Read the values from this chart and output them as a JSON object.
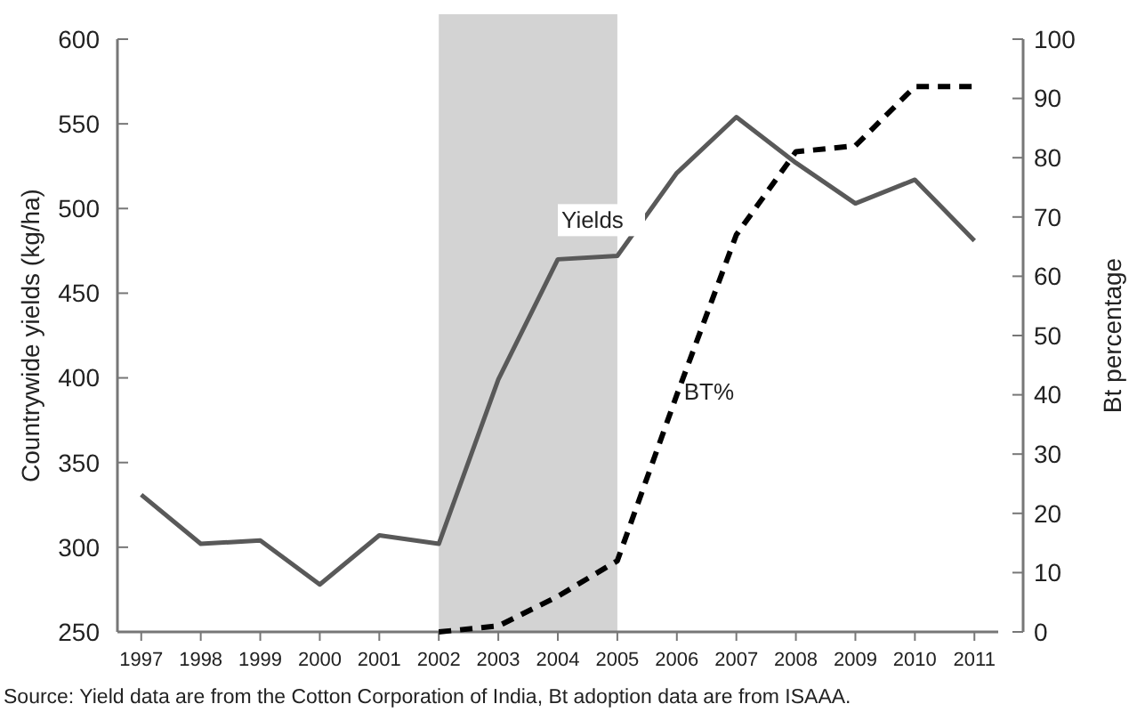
{
  "chart_data": {
    "type": "line",
    "ylabel": "Countrywide yields (kg/ha)",
    "y2label": "Bt percentage",
    "x": [
      1997,
      1998,
      1999,
      2000,
      2001,
      2002,
      2003,
      2004,
      2005,
      2006,
      2007,
      2008,
      2009,
      2010,
      2011
    ],
    "xlim": [
      1996.6,
      2011.4
    ],
    "xticks": [
      1997,
      1998,
      1999,
      2000,
      2001,
      2002,
      2003,
      2004,
      2005,
      2006,
      2007,
      2008,
      2009,
      2010,
      2011
    ],
    "ylim": [
      250,
      600
    ],
    "yticks": [
      250,
      300,
      350,
      400,
      450,
      500,
      550,
      600
    ],
    "y2lim": [
      0,
      100
    ],
    "y2ticks": [
      0,
      10,
      20,
      30,
      40,
      50,
      60,
      70,
      80,
      90,
      100
    ],
    "series": [
      {
        "color": "#595959",
        "line_style": "solid",
        "values": [
          331,
          302,
          304,
          278,
          307,
          302,
          399,
          470,
          472,
          521,
          554,
          527,
          503,
          517,
          481
        ]
      },
      {
        "color": "#000000",
        "line_style": "dashed",
        "axis": "y2",
        "values": [
          null,
          null,
          null,
          null,
          null,
          0,
          1,
          6,
          12,
          40,
          67,
          81,
          82,
          92,
          92
        ]
      }
    ],
    "bands": [
      {
        "axis": "x",
        "from": 2002,
        "to": 2005,
        "color": "#d3d3d3"
      }
    ],
    "annotations": [
      "Yields",
      "BT%",
      "Source: Yield data are from the Cotton Corporation of India, Bt adoption data are from ISAAA."
    ],
    "grid": false
  }
}
